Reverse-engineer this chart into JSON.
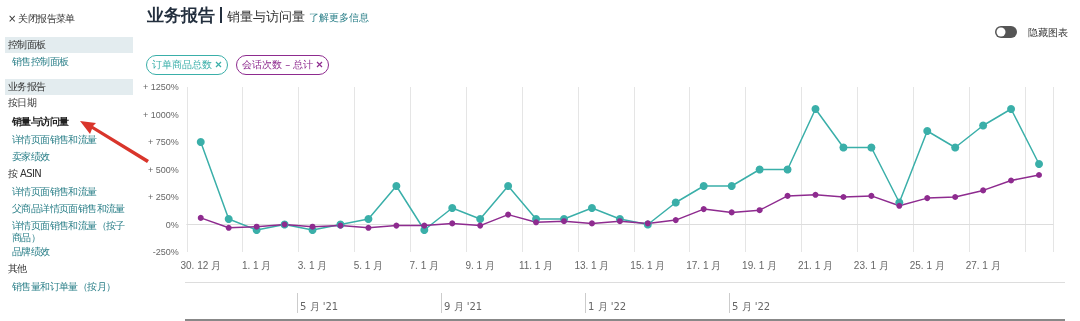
{
  "chart_data": [
    {
      "type": "other",
      "annotations": [
        "× 关闭报告菜单",
        "控制面板",
        "销售控制面板",
        "业务报告",
        "按日期",
        "销量与访问量",
        "详情页面销售和流量",
        "卖家绩效",
        "按 ASIN",
        "详情页面销售和流量",
        "父商品详情页面销售和流量",
        "详情页面销售和流量（按子商品）",
        "品牌绩效",
        "其他",
        "销售量和订单量（按月）"
      ]
    },
    {
      "type": "line",
      "title": "业务报告",
      "subtitle": "销量与访问量",
      "annotations": [
        "了解更多信息",
        "隐藏图表",
        "5 月 '21",
        "9 月 '21",
        "1 月 '22",
        "5 月 '22"
      ],
      "categories": [
        "30. 12 月",
        null,
        "1. 1 月",
        null,
        "3. 1 月",
        null,
        "5. 1 月",
        null,
        "7. 1 月",
        null,
        "9. 1 月",
        null,
        "11. 1 月",
        null,
        "13. 1 月",
        null,
        "15. 1 月",
        null,
        "17. 1 月",
        null,
        "19. 1 月",
        null,
        "21. 1 月",
        null,
        "23. 1 月",
        null,
        "25. 1 月",
        null,
        "27. 1 月",
        null,
        null
      ],
      "series": [
        {
          "name": "订单商品总数",
          "color": "#3aafa9",
          "values": [
            750,
            50,
            -50,
            0,
            -50,
            0,
            50,
            350,
            -50,
            150,
            50,
            350,
            50,
            50,
            150,
            50,
            0,
            200,
            350,
            350,
            500,
            500,
            1050,
            700,
            700,
            200,
            850,
            700,
            900,
            1050,
            550
          ]
        },
        {
          "name": "会话次数 – 总计",
          "color": "#8e2b8f",
          "values": [
            60,
            -30,
            -20,
            0,
            -20,
            -10,
            -30,
            -10,
            -10,
            10,
            -10,
            90,
            20,
            30,
            10,
            30,
            10,
            40,
            140,
            110,
            130,
            260,
            270,
            250,
            260,
            170,
            240,
            250,
            310,
            400,
            450
          ]
        }
      ],
      "ylim": [
        -250,
        1250
      ],
      "yticks": [
        {
          "value": -250,
          "label": "-250%"
        },
        {
          "value": 0,
          "label": "0%"
        },
        {
          "value": 250,
          "label": "+ 250%"
        },
        {
          "value": 500,
          "label": "+ 500%"
        },
        {
          "value": 750,
          "label": "+ 750%"
        },
        {
          "value": 1000,
          "label": "+ 1000%"
        },
        {
          "value": 1250,
          "label": "+ 1250%"
        }
      ],
      "grid": "x",
      "legend": "top left",
      "marker": "circle",
      "line_style": "solid"
    }
  ]
}
